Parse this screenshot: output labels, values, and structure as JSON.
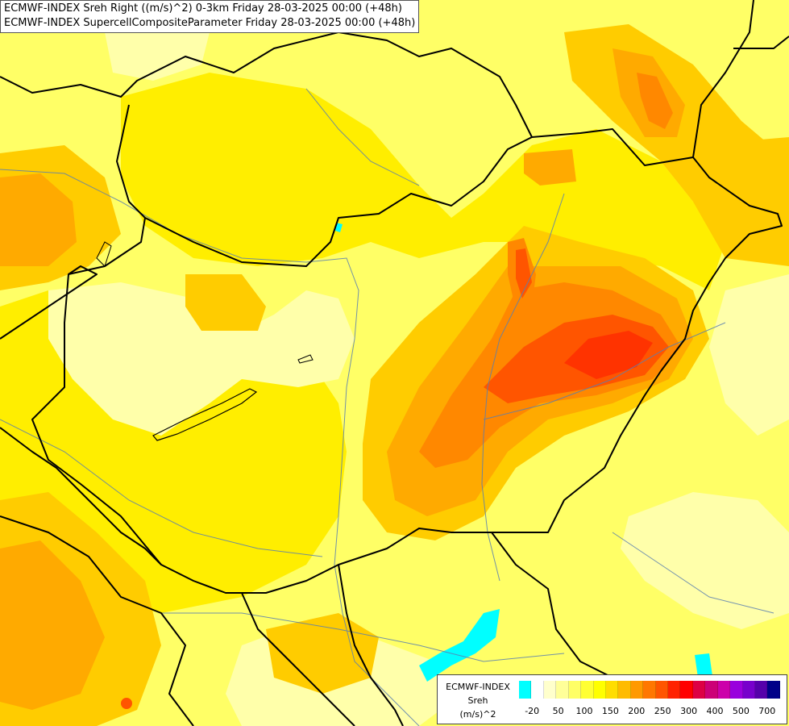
{
  "header": {
    "line1": "ECMWF-INDEX Sreh Right ((m/s)^2) 0-3km Friday 28-03-2025 00:00 (+48h)",
    "line2": "ECMWF-INDEX SupercellCompositeParameter Friday 28-03-2025 00:00 (+48h)"
  },
  "legend": {
    "source": "ECMWF-INDEX",
    "variable": "Sreh",
    "unit": "(m/s)^2",
    "colors": [
      "#00ffff",
      "#ffffff",
      "#ffffcc",
      "#ffff99",
      "#ffff66",
      "#ffff33",
      "#ffff00",
      "#ffdd00",
      "#ffbb00",
      "#ff9900",
      "#ff7700",
      "#ff5500",
      "#ff2200",
      "#ff0000",
      "#dd0044",
      "#cc0077",
      "#cc00aa",
      "#9900dd",
      "#7700cc",
      "#5500aa",
      "#000088"
    ],
    "ticks": [
      "-20",
      "50",
      "100",
      "150",
      "200",
      "250",
      "300",
      "400",
      "500",
      "700"
    ]
  },
  "map": {
    "field_colors": {
      "light": "#ffffaa",
      "pale": "#ffff66",
      "yellow": "#ffee00",
      "gold": "#ffcc00",
      "orange": "#ffaa00",
      "dark_orange": "#ff8800",
      "red_orange": "#ff5500",
      "red": "#ff3300",
      "cyan": "#00ffff"
    }
  }
}
